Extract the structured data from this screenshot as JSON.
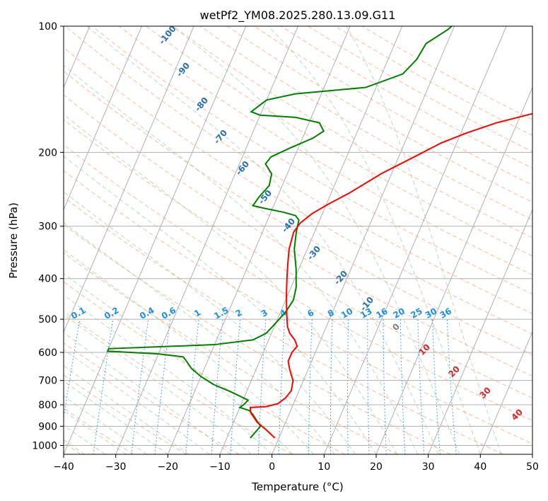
{
  "chart_data": {
    "type": "line",
    "title": "wetPf2_YM08.2025.280.13.09.G11",
    "xlabel": "Temperature (°C)",
    "ylabel": "Pressure (hPa)",
    "xlim": [
      -40,
      50
    ],
    "ylim": [
      1050,
      100
    ],
    "y_scale": "log",
    "grid": true,
    "x_ticks": [
      -40,
      -30,
      -20,
      -10,
      0,
      10,
      20,
      30,
      40,
      50
    ],
    "x_tick_labels": [
      "−40",
      "−30",
      "−20",
      "−10",
      "0",
      "10",
      "20",
      "30",
      "40",
      "50"
    ],
    "y_ticks": [
      100,
      200,
      300,
      400,
      500,
      600,
      700,
      800,
      900,
      1000
    ],
    "y_tick_labels": [
      "100",
      "200",
      "300",
      "400",
      "500",
      "600",
      "700",
      "800",
      "900",
      "1000"
    ],
    "series": [
      {
        "role": "temperature",
        "color": "#ff0000",
        "points": [
          [
            -0.8,
            960
          ],
          [
            -3,
            920
          ],
          [
            -5.5,
            880
          ],
          [
            -7.5,
            835
          ],
          [
            -8,
            812
          ],
          [
            -5,
            808
          ],
          [
            -3,
            795
          ],
          [
            -2,
            770
          ],
          [
            -1.5,
            740
          ],
          [
            -2,
            700
          ],
          [
            -3.5,
            660
          ],
          [
            -4.5,
            630
          ],
          [
            -4.5,
            600
          ],
          [
            -4,
            580
          ],
          [
            -5,
            560
          ],
          [
            -6.5,
            540
          ],
          [
            -7.5,
            520
          ],
          [
            -8.5,
            490
          ],
          [
            -9.5,
            460
          ],
          [
            -10.5,
            430
          ],
          [
            -11.5,
            400
          ],
          [
            -12.5,
            370
          ],
          [
            -13.5,
            340
          ],
          [
            -14,
            310
          ],
          [
            -13.5,
            295
          ],
          [
            -12,
            280
          ],
          [
            -9.5,
            265
          ],
          [
            -6.5,
            250
          ],
          [
            -2,
            225
          ],
          [
            3,
            205
          ],
          [
            7,
            190
          ],
          [
            11,
            180
          ],
          [
            16,
            170
          ],
          [
            25,
            158
          ],
          [
            33,
            146
          ],
          [
            40,
            132
          ],
          [
            45,
            118
          ],
          [
            47,
            108
          ],
          [
            48.5,
            100
          ]
        ]
      },
      {
        "role": "dewpoint",
        "color": "#008000",
        "points": [
          [
            -5.5,
            960
          ],
          [
            -5,
            930
          ],
          [
            -4.5,
            900
          ],
          [
            -6,
            865
          ],
          [
            -7,
            842
          ],
          [
            -8,
            825
          ],
          [
            -10,
            812
          ],
          [
            -9.5,
            800
          ],
          [
            -9,
            780
          ],
          [
            -13,
            745
          ],
          [
            -17,
            715
          ],
          [
            -20,
            685
          ],
          [
            -22.5,
            655
          ],
          [
            -24,
            630
          ],
          [
            -25,
            615
          ],
          [
            -30,
            605
          ],
          [
            -40,
            596
          ],
          [
            -40,
            588
          ],
          [
            -20,
            575
          ],
          [
            -13,
            560
          ],
          [
            -11,
            540
          ],
          [
            -10,
            510
          ],
          [
            -9,
            480
          ],
          [
            -8.5,
            450
          ],
          [
            -9,
            420
          ],
          [
            -10.5,
            380
          ],
          [
            -12.5,
            340
          ],
          [
            -13.5,
            310
          ],
          [
            -14,
            290
          ],
          [
            -15,
            283
          ],
          [
            -17.5,
            278
          ],
          [
            -21.5,
            272
          ],
          [
            -24,
            268
          ],
          [
            -23.5,
            255
          ],
          [
            -22.5,
            240
          ],
          [
            -23,
            225
          ],
          [
            -25,
            213
          ],
          [
            -24.5,
            205
          ],
          [
            -21.5,
            195
          ],
          [
            -18,
            185
          ],
          [
            -16.5,
            178
          ],
          [
            -18,
            170
          ],
          [
            -23,
            165
          ],
          [
            -30,
            163
          ],
          [
            -32,
            160
          ],
          [
            -30,
            150
          ],
          [
            -25,
            145
          ],
          [
            -12,
            140
          ],
          [
            -6,
            130
          ],
          [
            -4.5,
            120
          ],
          [
            -4,
            110
          ],
          [
            -1,
            102
          ],
          [
            -0.5,
            100
          ]
        ]
      }
    ],
    "mixing_ratio_labels": [
      "0.1",
      "0.2",
      "0.4",
      "0.6",
      "1",
      "1.5",
      "2",
      "3",
      "4",
      "6",
      "8",
      "10",
      "13",
      "16",
      "20",
      "25",
      "30",
      "36"
    ],
    "mixing_ratio_values": [
      0.1,
      0.2,
      0.4,
      0.6,
      1,
      1.5,
      2,
      3,
      4,
      6,
      8,
      10,
      13,
      16,
      20,
      25,
      30,
      36
    ],
    "moist_adiabat_labels": [
      "-100",
      "-90",
      "-80",
      "-70",
      "-60",
      "-50",
      "-40",
      "-30",
      "-20",
      "-10"
    ],
    "dry_adiabat_labels": [
      "0",
      "10",
      "20",
      "30",
      "40"
    ]
  }
}
